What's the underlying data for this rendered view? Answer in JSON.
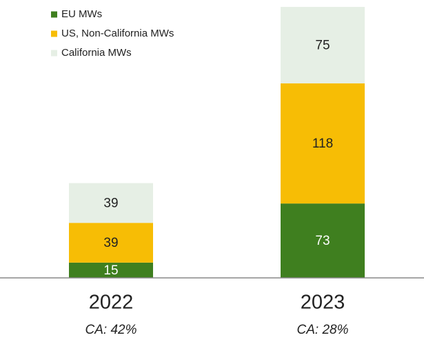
{
  "chart_data": {
    "type": "stacked_bar",
    "categories": [
      "2022",
      "2023"
    ],
    "category_notes": [
      "CA: 42%",
      "CA: 28%"
    ],
    "series": [
      {
        "name": "EU MWs",
        "color": "#3f7f1f",
        "values": [
          15,
          73
        ]
      },
      {
        "name": "US, Non-California MWs",
        "color": "#f7bd05",
        "values": [
          39,
          118
        ]
      },
      {
        "name": "California MWs",
        "color": "#e6efe5",
        "values": [
          39,
          75
        ]
      }
    ],
    "legend": "upper left"
  }
}
